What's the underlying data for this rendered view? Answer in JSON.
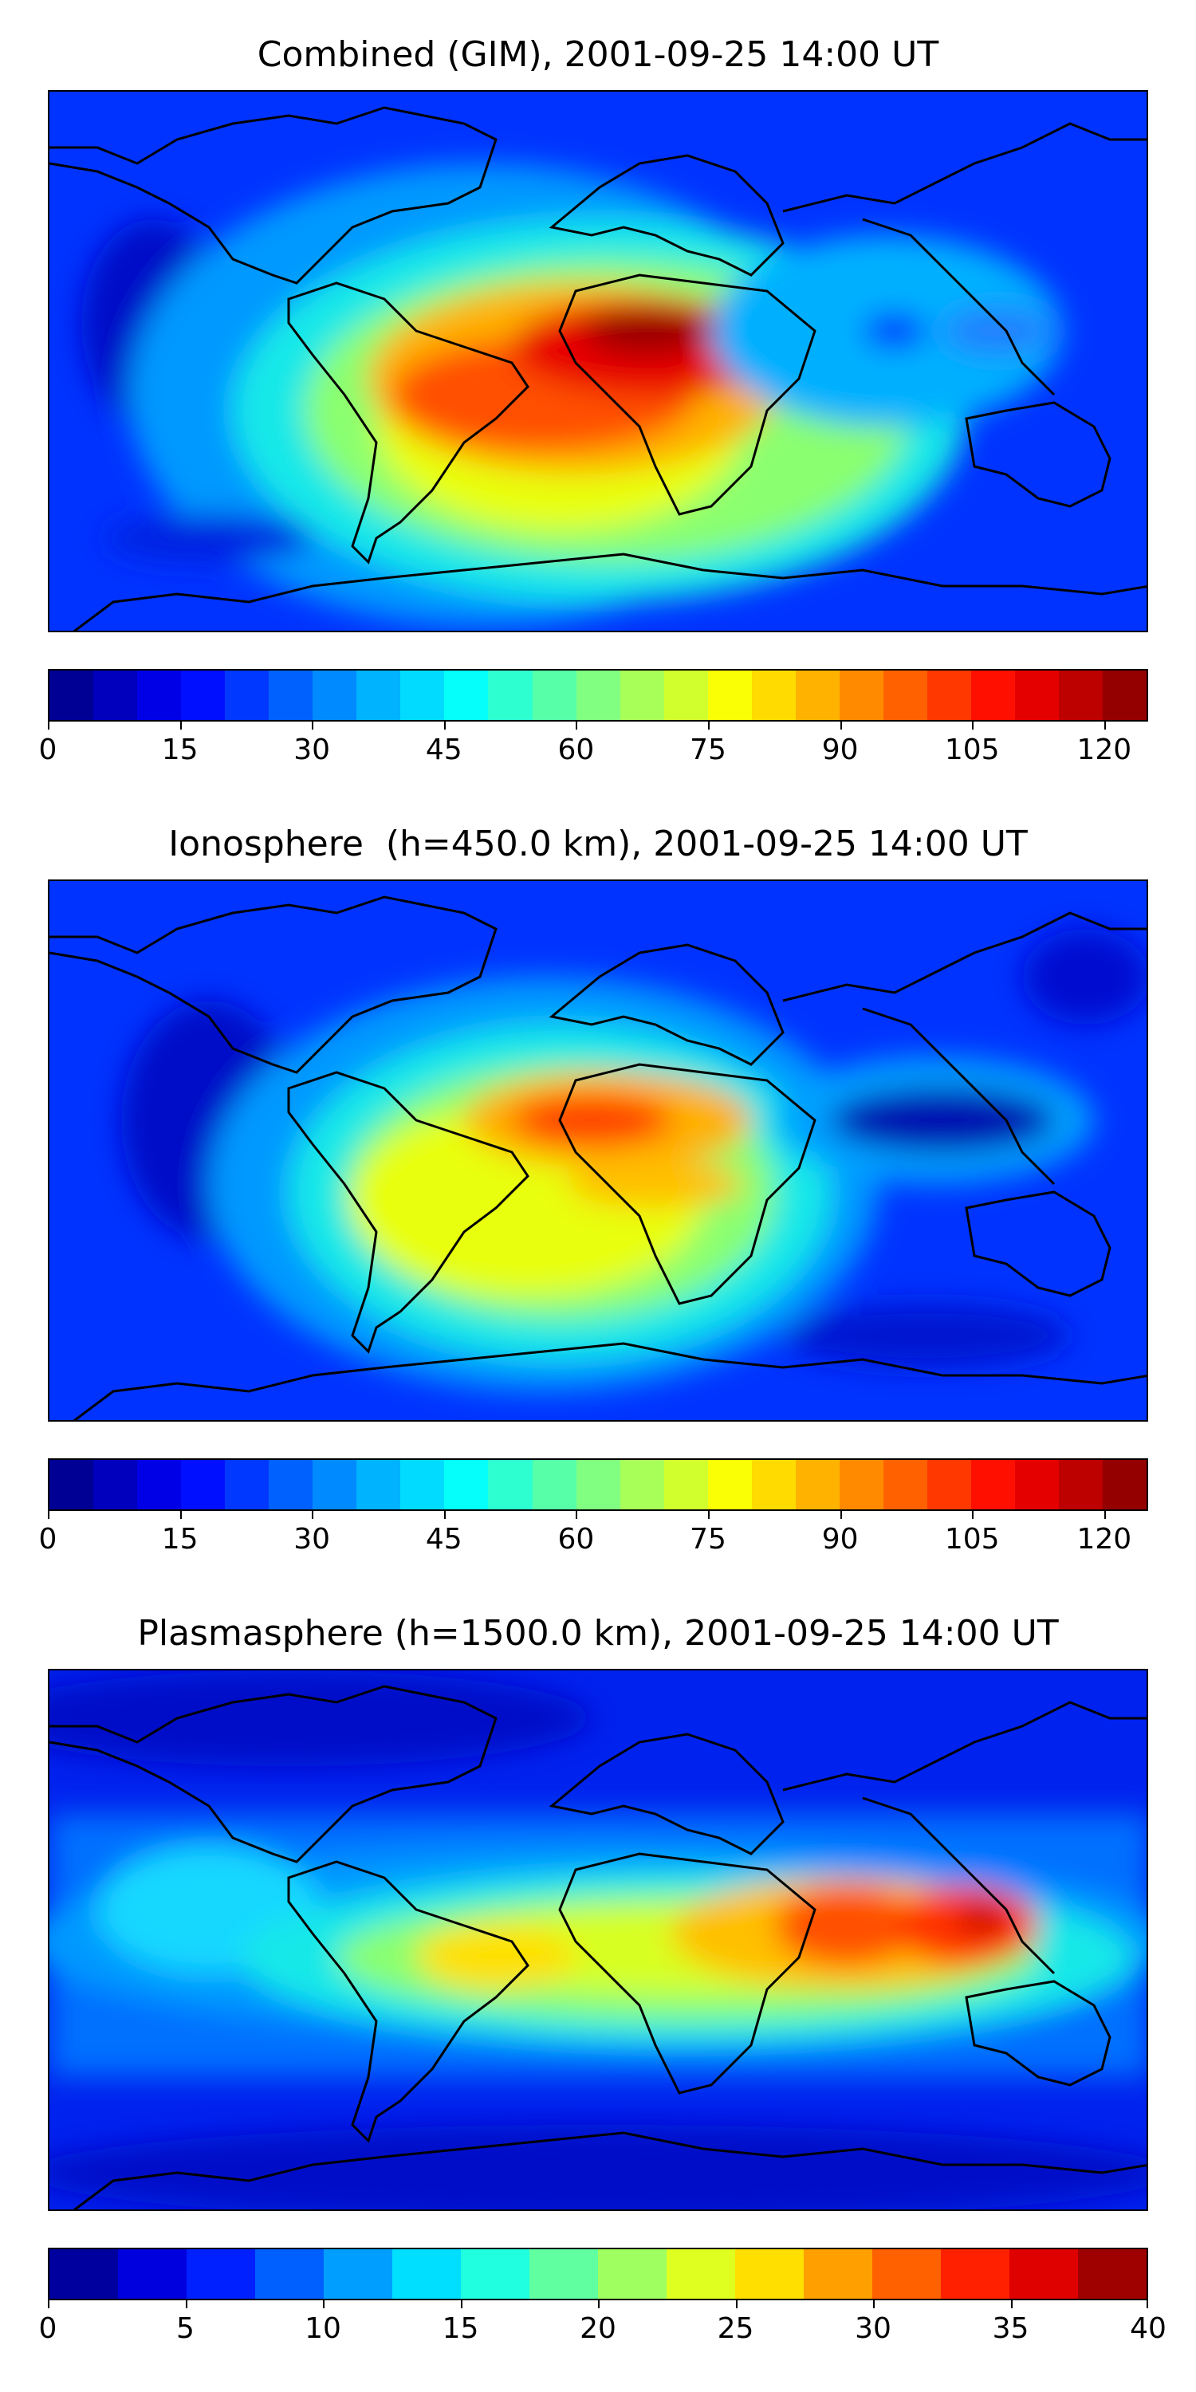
{
  "panels": [
    {
      "title": "Combined (GIM), 2001-09-25 14:00 UT",
      "colorbar": {
        "min": 0,
        "max": 125,
        "levels": 25,
        "ticks": [
          "0",
          "15",
          "30",
          "45",
          "60",
          "75",
          "90",
          "105",
          "120"
        ],
        "tick_values": [
          0,
          15,
          30,
          45,
          60,
          75,
          90,
          105,
          120
        ]
      }
    },
    {
      "title": "Ionosphere  (h=450.0 km), 2001-09-25 14:00 UT",
      "colorbar": {
        "min": 0,
        "max": 125,
        "levels": 25,
        "ticks": [
          "0",
          "15",
          "30",
          "45",
          "60",
          "75",
          "90",
          "105",
          "120"
        ],
        "tick_values": [
          0,
          15,
          30,
          45,
          60,
          75,
          90,
          105,
          120
        ]
      }
    },
    {
      "title": "Plasmasphere (h=1500.0 km), 2001-09-25 14:00 UT",
      "colorbar": {
        "min": 0,
        "max": 40,
        "levels": 16,
        "ticks": [
          "0",
          "5",
          "10",
          "15",
          "20",
          "25",
          "30",
          "35",
          "40"
        ],
        "tick_values": [
          0,
          5,
          10,
          15,
          20,
          25,
          30,
          35,
          40
        ]
      }
    }
  ],
  "colormap": "jet",
  "coastline_color": "#000000"
}
